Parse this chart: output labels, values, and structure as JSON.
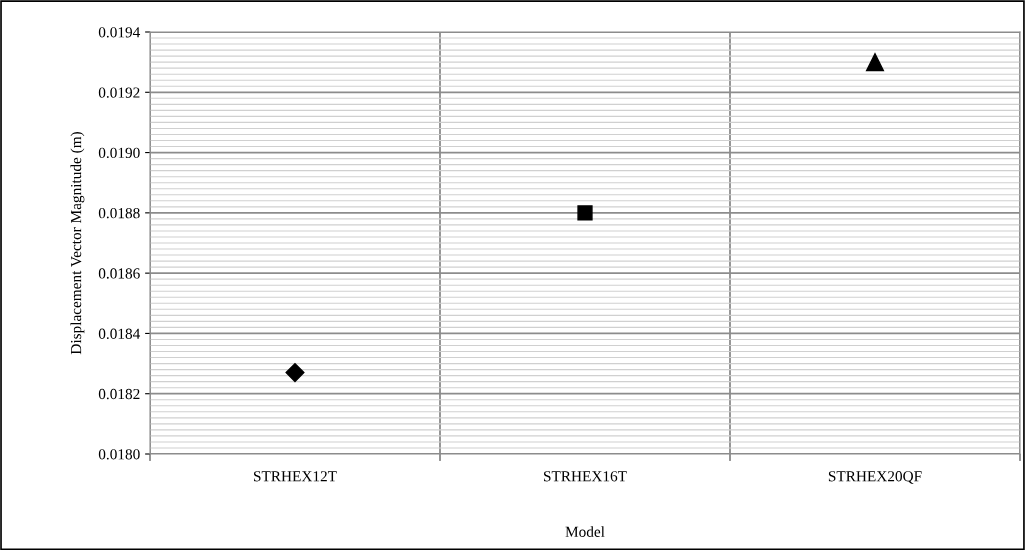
{
  "chart_data": {
    "type": "scatter",
    "xlabel": "Model",
    "ylabel": "Displacement Vector Magnitude (m)",
    "categories": [
      "STRHEX12T",
      "STRHEX16T",
      "STRHEX20QF"
    ],
    "series": [
      {
        "color": "#000000",
        "marker": "diamond",
        "values": [
          0.01827,
          null,
          null
        ]
      },
      {
        "color": "#000000",
        "marker": "square",
        "values": [
          null,
          0.0188,
          null
        ]
      },
      {
        "color": "#000000",
        "marker": "triangle",
        "values": [
          null,
          null,
          0.0193
        ]
      }
    ],
    "ylim": [
      0.018,
      0.0194
    ],
    "yticks": [
      {
        "value": 0.018,
        "label": "0.0180"
      },
      {
        "value": 0.0182,
        "label": "0.0182"
      },
      {
        "value": 0.0184,
        "label": "0.0184"
      },
      {
        "value": 0.0186,
        "label": "0.0186"
      },
      {
        "value": 0.0188,
        "label": "0.0188"
      },
      {
        "value": 0.019,
        "label": "0.0190"
      },
      {
        "value": 0.0192,
        "label": "0.0192"
      },
      {
        "value": 0.0194,
        "label": "0.0194"
      }
    ],
    "grid": true,
    "legend": false
  }
}
